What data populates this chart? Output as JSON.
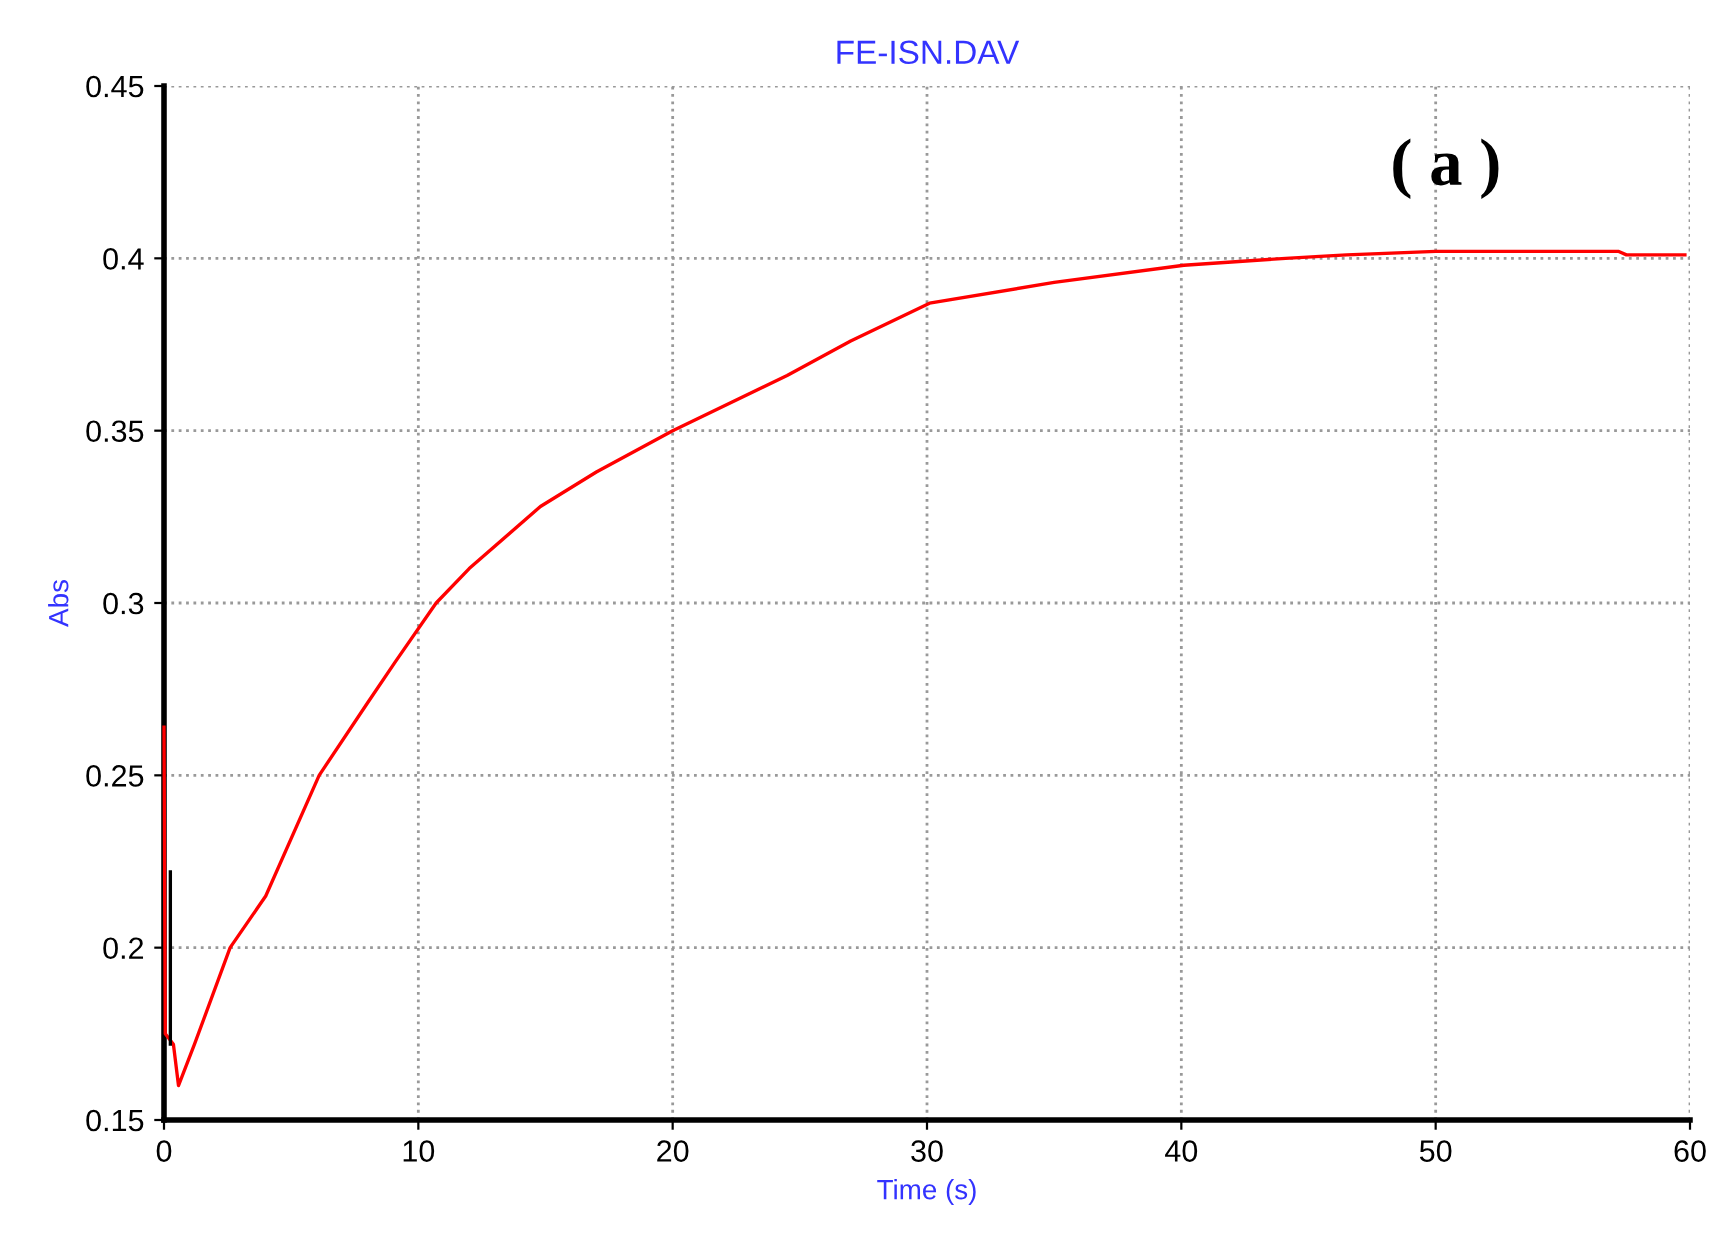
{
  "chart_data": {
    "type": "line",
    "title": "FE-ISN.DAV",
    "xlabel": "Time (s)",
    "ylabel": "Abs",
    "annotations": [
      "( a )"
    ],
    "series": [
      {
        "color": "#ff0000",
        "x": [
          0,
          0.05,
          0.37,
          0.57,
          1.2,
          2.6,
          4,
          6.1,
          8,
          9.1,
          10.7,
          12,
          14.8,
          17,
          20,
          24.5,
          27,
          30.1,
          35,
          40.1,
          44.1,
          46.5,
          50,
          57.2,
          57.5,
          59.8
        ],
        "values": [
          0.264,
          0.175,
          0.172,
          0.16,
          0.172,
          0.2,
          0.215,
          0.25,
          0.271,
          0.283,
          0.3,
          0.31,
          0.328,
          0.338,
          0.35,
          0.366,
          0.376,
          0.387,
          0.393,
          0.398,
          0.4,
          0.401,
          0.402,
          0.402,
          0.401,
          0.401
        ]
      },
      {
        "color": "#000000",
        "x": [
          0.25,
          0.25
        ],
        "values": [
          0.222,
          0.172
        ]
      }
    ],
    "xlim": [
      0,
      60
    ],
    "ylim": [
      0.15,
      0.45
    ],
    "xticks": [
      0,
      10,
      20,
      30,
      40,
      50,
      60
    ],
    "yticks": [
      0.15,
      0.2,
      0.25,
      0.3,
      0.35,
      0.4,
      0.45
    ],
    "grid": true,
    "line_style": "solid",
    "marker": "none"
  }
}
